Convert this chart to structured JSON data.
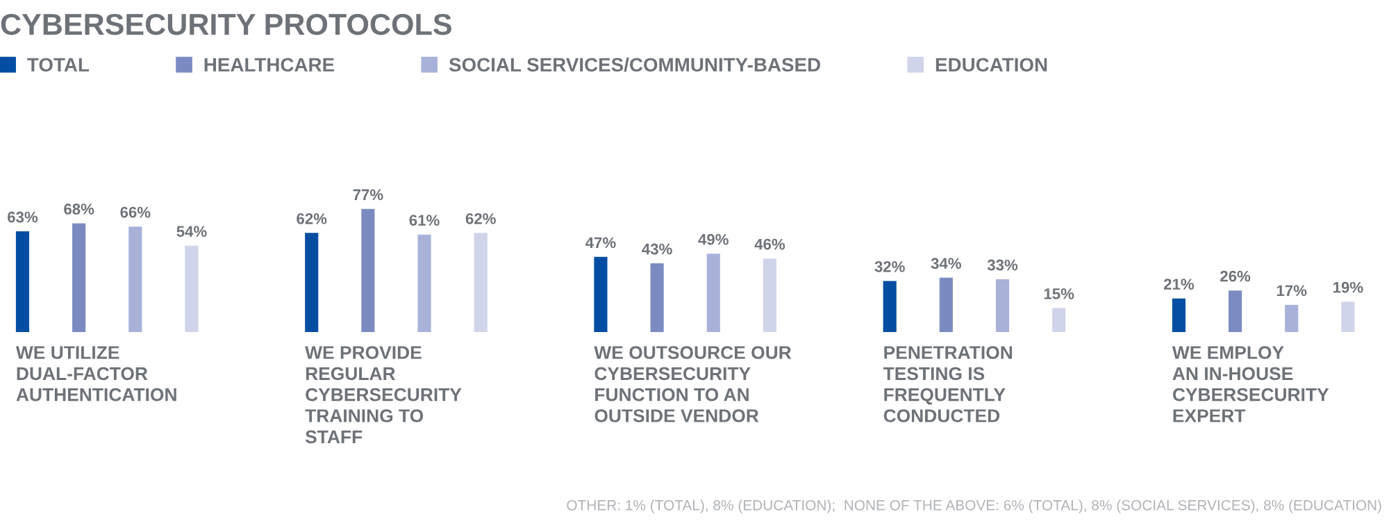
{
  "chart_data": {
    "type": "bar",
    "title": "CYBERSECURITY PROTOCOLS",
    "categories": [
      "WE UTILIZE\nDUAL-FACTOR\nAUTHENTICATION",
      "WE PROVIDE\nREGULAR\nCYBERSECURITY\nTRAINING TO\nSTAFF",
      "WE OUTSOURCE OUR\nCYBERSECURITY\nFUNCTION TO AN\nOUTSIDE VENDOR",
      "PENETRATION\nTESTING IS\nFREQUENTLY\nCONDUCTED",
      "WE EMPLOY\nAN IN-HOUSE\nCYBERSECURITY\nEXPERT"
    ],
    "series": [
      {
        "name": "TOTAL",
        "color": "#034ea2",
        "values": [
          63,
          62,
          47,
          32,
          21
        ],
        "value_labels": [
          "63%",
          "62%",
          "47%",
          "32%",
          "21%"
        ]
      },
      {
        "name": "HEALTHCARE",
        "color": "#7b8bc2",
        "values": [
          68,
          77,
          43,
          34,
          26
        ],
        "value_labels": [
          "68%",
          "77%",
          "43%",
          "34%",
          "26%"
        ]
      },
      {
        "name": "SOCIAL SERVICES/COMMUNITY-BASED",
        "color": "#a9b1d9",
        "values": [
          66,
          61,
          49,
          33,
          17
        ],
        "value_labels": [
          "66%",
          "61%",
          "49%",
          "33%",
          "17%"
        ]
      },
      {
        "name": "EDUCATION",
        "color": "#d0d4ea",
        "values": [
          54,
          62,
          46,
          15,
          19
        ],
        "value_labels": [
          "54%",
          "62%",
          "46%",
          "15%",
          "19%"
        ]
      }
    ],
    "legend": "top",
    "annotations": [
      "OTHER: 1% (TOTAL), 8% (EDUCATION);  NONE OF THE ABOVE: 6% (TOTAL), 8% (SOCIAL SERVICES), 8% (EDUCATION)"
    ]
  }
}
